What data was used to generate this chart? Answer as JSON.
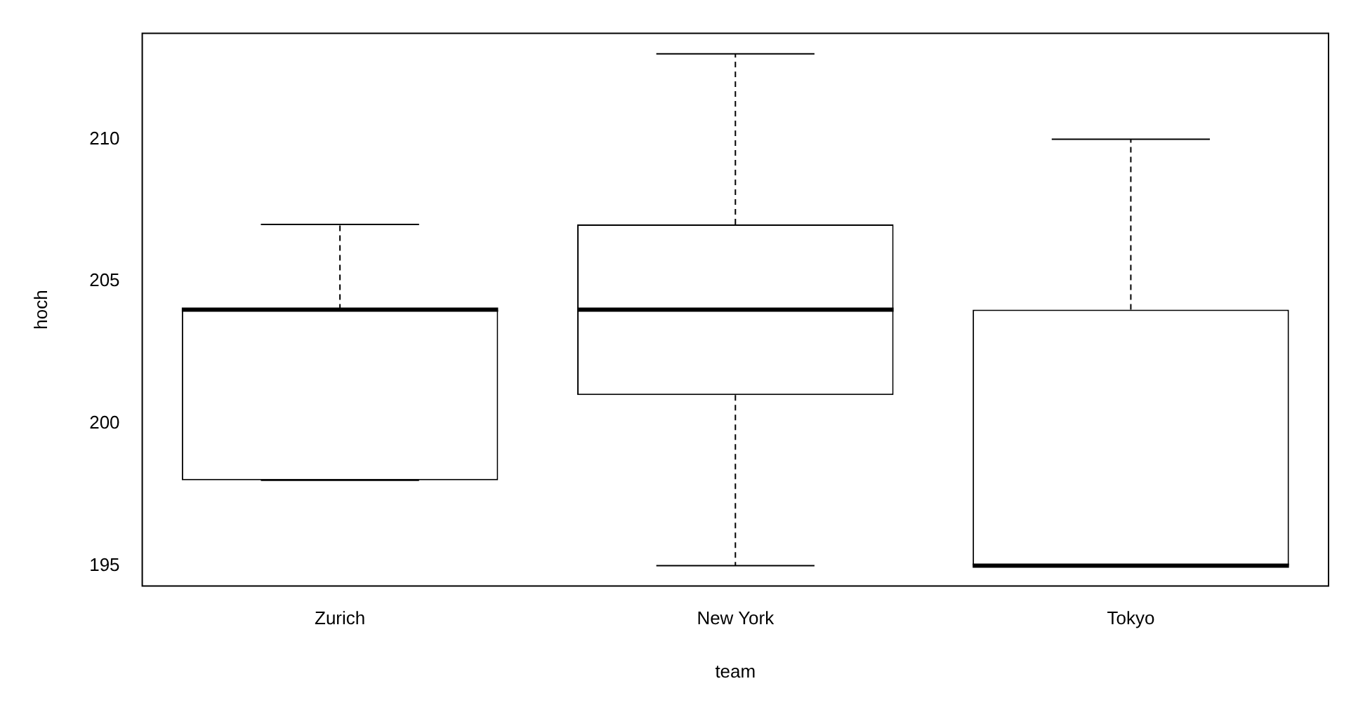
{
  "chart_data": {
    "type": "box",
    "xlabel": "team",
    "ylabel": "hoch",
    "categories": [
      "Zurich",
      "New York",
      "Tokyo"
    ],
    "boxes": [
      {
        "low": 198,
        "q1": 198,
        "median": 204,
        "q3": 204,
        "high": 207
      },
      {
        "low": 195,
        "q1": 201,
        "median": 204,
        "q3": 207,
        "high": 213
      },
      {
        "low": 195,
        "q1": 195,
        "median": 195,
        "q3": 204,
        "high": 210
      }
    ],
    "ylim": [
      194.28,
      213.72
    ],
    "yticks": [
      195,
      200,
      205,
      210
    ],
    "grid": false,
    "legend": false
  }
}
